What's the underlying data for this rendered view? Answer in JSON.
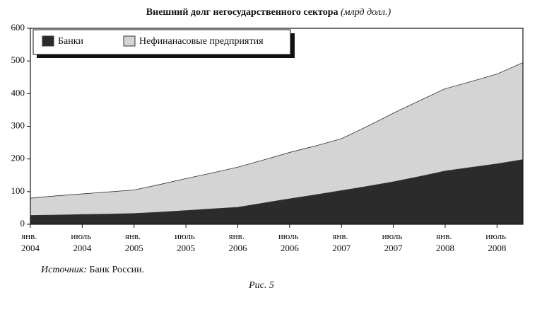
{
  "chart_data": {
    "type": "stacked_area",
    "title": "Внешний долг негосударственного сектора",
    "subtitle": "(млрд долл.)",
    "source_label": "Источник:",
    "source": "Банк России.",
    "caption": "Рис. 5",
    "categories": [
      "янв. 2004",
      null,
      "июль 2004",
      null,
      "янв. 2005",
      null,
      "июль 2005",
      null,
      "янв. 2006",
      null,
      "июль 2006",
      null,
      "янв. 2007",
      null,
      "июль 2007",
      null,
      "янв. 2008",
      null,
      "июль 2008",
      null
    ],
    "series": [
      {
        "name": "Банки",
        "color": "#2b2b2b",
        "values": [
          27,
          28,
          30,
          31,
          33,
          37,
          42,
          47,
          52,
          65,
          78,
          90,
          103,
          116,
          130,
          146,
          163,
          174,
          185,
          198
        ]
      },
      {
        "name": "Нефинанасовые предприятия",
        "color": "#d4d4d4",
        "values": [
          53,
          59,
          63,
          68,
          72,
          85,
          98,
          110,
          123,
          132,
          142,
          150,
          159,
          184,
          210,
          232,
          252,
          263,
          275,
          297
        ]
      }
    ],
    "ylim": [
      0,
      600
    ],
    "yticks": [
      0,
      100,
      200,
      300,
      400,
      500,
      600
    ]
  }
}
